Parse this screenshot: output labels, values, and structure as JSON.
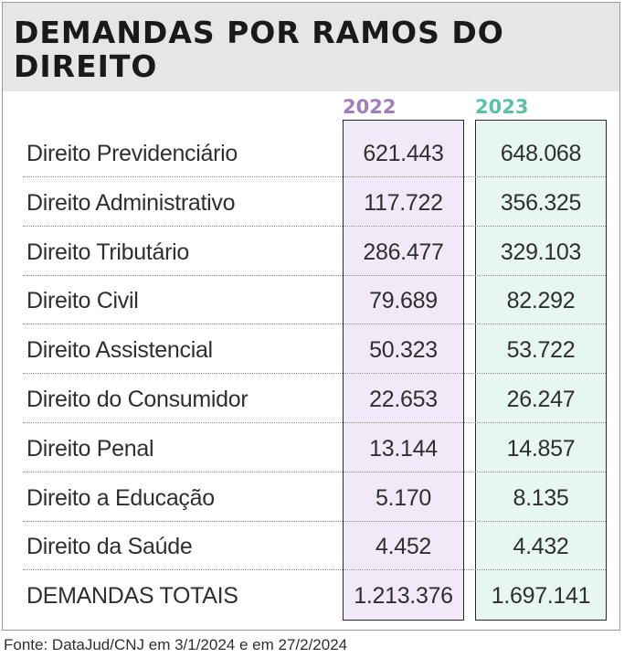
{
  "title": "DEMANDAS POR RAMOS DO DIREITO",
  "columns": {
    "c2022": {
      "label": "2022",
      "color": "#a27bc0",
      "background": "#f1e9f8"
    },
    "c2023": {
      "label": "2023",
      "color": "#5cc1a8",
      "background": "#e8f6f1"
    }
  },
  "rows": [
    {
      "label": "Direito Previdenciário",
      "v2022": "621.443",
      "v2023": "648.068"
    },
    {
      "label": "Direito Administrativo",
      "v2022": "117.722",
      "v2023": "356.325"
    },
    {
      "label": "Direito Tributário",
      "v2022": "286.477",
      "v2023": "329.103"
    },
    {
      "label": "Direito Civil",
      "v2022": "79.689",
      "v2023": "82.292"
    },
    {
      "label": "Direito Assistencial",
      "v2022": "50.323",
      "v2023": "53.722"
    },
    {
      "label": "Direito do Consumidor",
      "v2022": "22.653",
      "v2023": "26.247"
    },
    {
      "label": "Direito Penal",
      "v2022": "13.144",
      "v2023": "14.857"
    },
    {
      "label": "Direito a Educação",
      "v2022": "5.170",
      "v2023": "8.135"
    },
    {
      "label": "Direito da Saúde",
      "v2022": "4.452",
      "v2023": "4.432"
    }
  ],
  "totals": {
    "label": "DEMANDAS TOTAIS",
    "v2022": "1.213.376",
    "v2023": "1.697.141"
  },
  "source": "Fonte: DataJud/CNJ em 3/1/2024 e em 27/2/2024"
}
